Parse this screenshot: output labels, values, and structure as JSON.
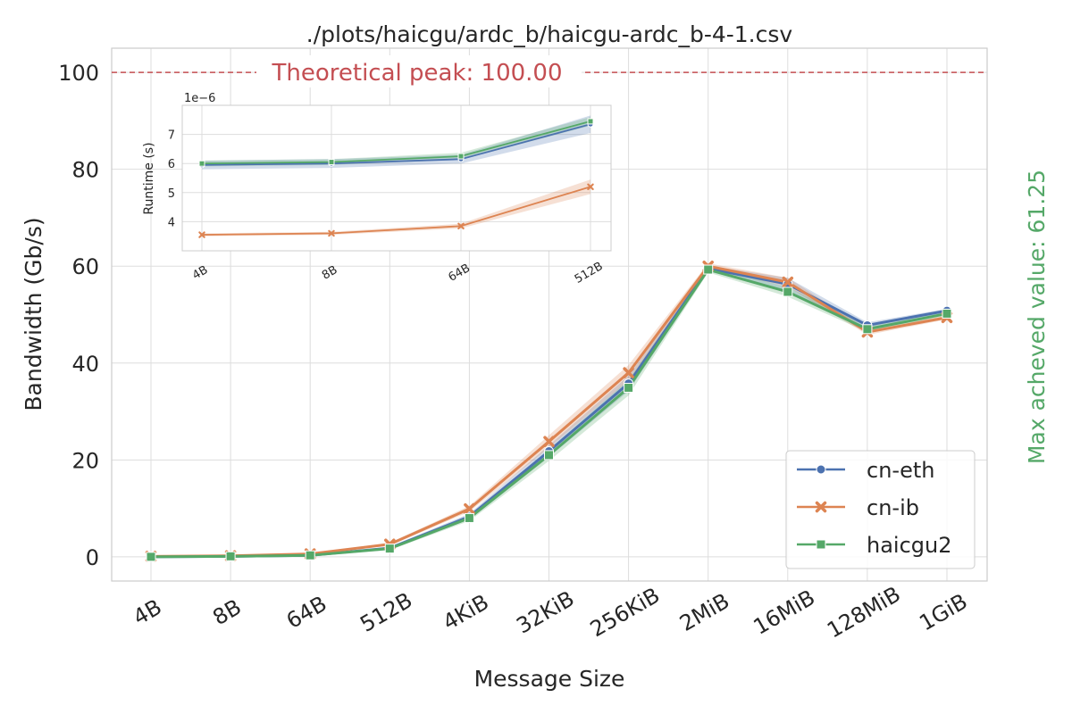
{
  "chart_data": [
    {
      "type": "line",
      "title": "./plots/haicgu/ardc_b/haicgu-ardc_b-4-1.csv",
      "xlabel": "Message Size",
      "ylabel": "Bandwidth (Gb/s)",
      "categories": [
        "4B",
        "8B",
        "64B",
        "512B",
        "4KiB",
        "32KiB",
        "256KiB",
        "2MiB",
        "16MiB",
        "128MiB",
        "1GiB"
      ],
      "ylim": [
        -5,
        105
      ],
      "yticks": [
        0,
        20,
        40,
        60,
        80,
        100
      ],
      "grid": true,
      "legend_position": "lower-right",
      "series": [
        {
          "name": "cn-eth",
          "color": "#4c72b0",
          "marker": "circle",
          "values": [
            0.0,
            0.1,
            0.3,
            1.8,
            8.3,
            21.8,
            35.8,
            59.5,
            56.3,
            47.8,
            50.8
          ],
          "band": [
            0.0,
            0.0,
            0.1,
            0.3,
            0.6,
            1.2,
            1.6,
            0.6,
            1.3,
            0.6,
            0.4
          ]
        },
        {
          "name": "cn-ib",
          "color": "#dd8452",
          "marker": "x",
          "values": [
            0.1,
            0.2,
            0.6,
            2.6,
            9.9,
            23.8,
            38.0,
            60.0,
            56.7,
            46.4,
            49.4
          ],
          "band": [
            0.0,
            0.0,
            0.1,
            0.3,
            0.6,
            1.3,
            1.6,
            0.6,
            0.9,
            0.6,
            0.4
          ]
        },
        {
          "name": "haicgu2",
          "color": "#55a868",
          "marker": "square",
          "values": [
            0.0,
            0.1,
            0.3,
            1.7,
            8.0,
            21.0,
            34.9,
            59.3,
            54.7,
            47.0,
            50.2
          ],
          "band": [
            0.0,
            0.0,
            0.1,
            0.3,
            0.6,
            1.2,
            1.6,
            0.6,
            1.0,
            0.6,
            0.4
          ]
        }
      ],
      "annotations": {
        "peak_value": 100,
        "peak_text": "Theoretical peak: 100.00",
        "peak_color": "#c44e52",
        "max_text": "Max acheved value: 61.25",
        "max_color": "#55a868"
      }
    },
    {
      "type": "line",
      "ylabel": "Runtime (s)",
      "categories": [
        "4B",
        "8B",
        "64B",
        "512B"
      ],
      "scale_text": "1e−6",
      "ylim": [
        3.0,
        8.0
      ],
      "yticks": [
        4,
        5,
        6,
        7
      ],
      "series": [
        {
          "name": "cn-eth",
          "color": "#4c72b0",
          "marker": "circle",
          "values": [
            5.95,
            6.0,
            6.15,
            7.35
          ],
          "band": [
            0.15,
            0.15,
            0.15,
            0.3
          ]
        },
        {
          "name": "cn-ib",
          "color": "#dd8452",
          "marker": "x",
          "values": [
            3.55,
            3.6,
            3.85,
            5.2
          ],
          "band": [
            0.05,
            0.05,
            0.08,
            0.25
          ]
        },
        {
          "name": "haicgu2",
          "color": "#55a868",
          "marker": "square",
          "values": [
            6.0,
            6.05,
            6.25,
            7.45
          ],
          "band": [
            0.1,
            0.1,
            0.12,
            0.15
          ]
        }
      ]
    }
  ]
}
